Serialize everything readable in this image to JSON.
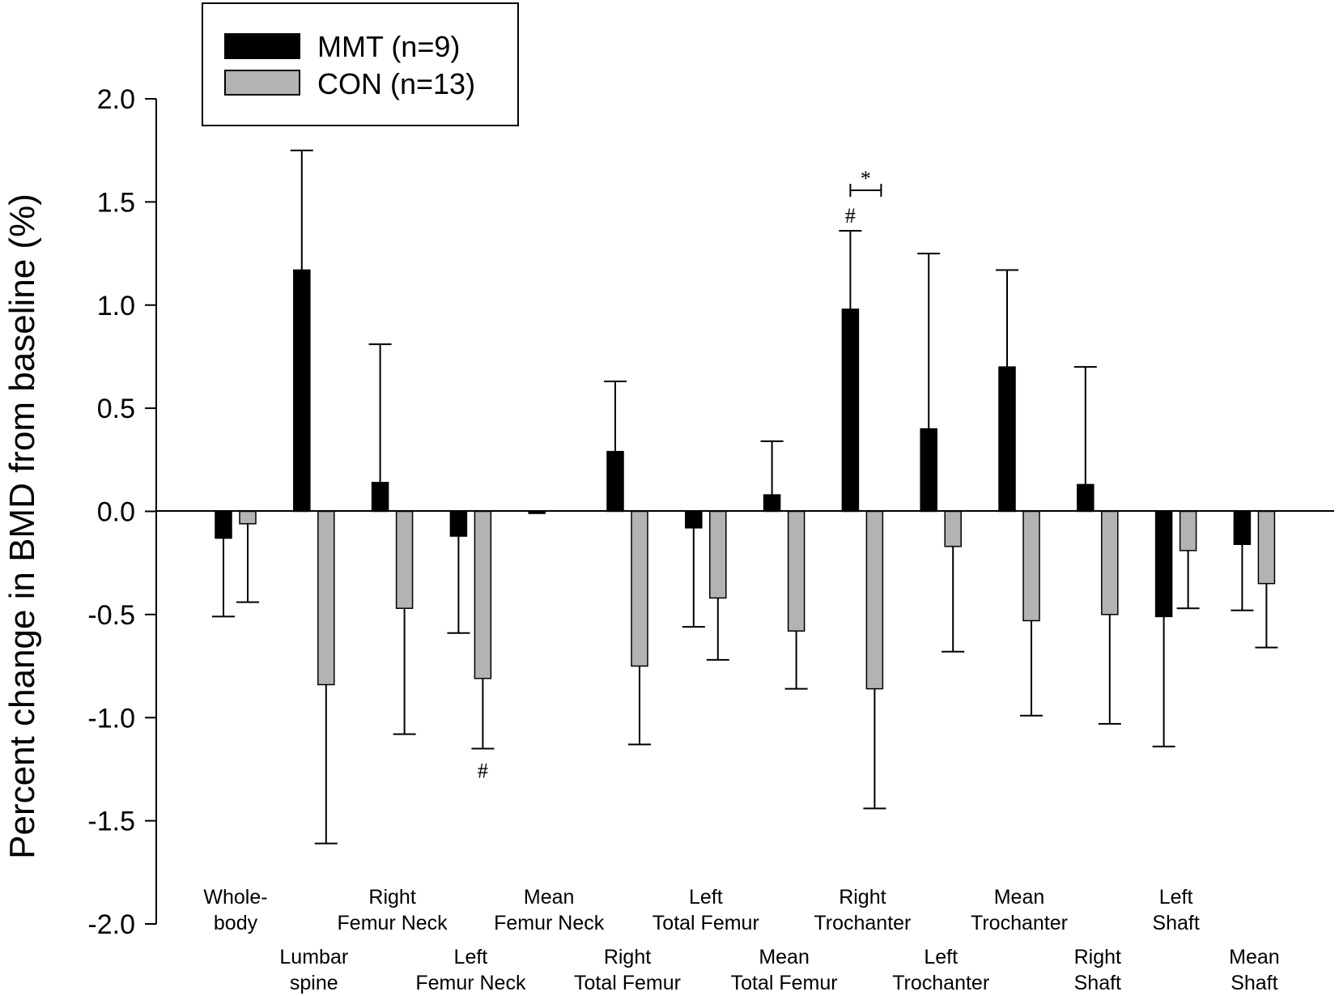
{
  "chart_data": {
    "type": "bar",
    "ylabel": "Percent change in BMD from baseline (%)",
    "xlabel": "",
    "ylim": [
      -2.0,
      2.0
    ],
    "yticks": [
      "2.0",
      "1.5",
      "1.0",
      "0.5",
      "0.0",
      "-0.5",
      "-1.0",
      "-1.5",
      "-2.0"
    ],
    "grid": false,
    "legend_position": "top-left",
    "categories": [
      [
        "Whole-",
        "body"
      ],
      [
        "Lumbar",
        "spine"
      ],
      [
        "Right",
        "Femur Neck"
      ],
      [
        "Left",
        "Femur Neck"
      ],
      [
        "Mean",
        "Femur Neck"
      ],
      [
        "Right",
        "Total Femur"
      ],
      [
        "Left",
        "Total Femur"
      ],
      [
        "Mean",
        "Total Femur"
      ],
      [
        "Right",
        "Trochanter"
      ],
      [
        "Left",
        "Trochanter"
      ],
      [
        "Mean",
        "Trochanter"
      ],
      [
        "Right",
        "Shaft"
      ],
      [
        "Left",
        "Shaft"
      ],
      [
        "Mean",
        "Shaft"
      ]
    ],
    "series": [
      {
        "name": "MMT (n=9)",
        "color": "#000000",
        "values": [
          -0.13,
          1.17,
          0.14,
          -0.12,
          -0.01,
          0.29,
          -0.08,
          0.08,
          0.98,
          0.4,
          0.7,
          0.13,
          -0.51,
          -0.16
        ],
        "errors": [
          0.38,
          0.58,
          0.67,
          0.47,
          0.0,
          0.34,
          0.48,
          0.26,
          0.38,
          0.85,
          0.47,
          0.57,
          0.63,
          0.32
        ]
      },
      {
        "name": "CON (n=13)",
        "color": "#b3b3b3",
        "values": [
          -0.06,
          -0.84,
          -0.47,
          -0.81,
          null,
          -0.75,
          -0.42,
          -0.58,
          -0.86,
          -0.17,
          -0.53,
          -0.5,
          -0.19,
          -0.35
        ],
        "errors": [
          0.38,
          0.77,
          0.61,
          0.34,
          null,
          0.38,
          0.3,
          0.28,
          0.58,
          0.51,
          0.46,
          0.53,
          0.28,
          0.31
        ]
      }
    ],
    "annotations": {
      "hash_symbol": "#",
      "star_symbol": "*",
      "hash_marks": [
        {
          "category_index": 3,
          "series_index": 1
        },
        {
          "category_index": 8,
          "series_index": 0
        }
      ],
      "significance_bracket": {
        "category_index": 8,
        "series_index": 0
      }
    }
  }
}
